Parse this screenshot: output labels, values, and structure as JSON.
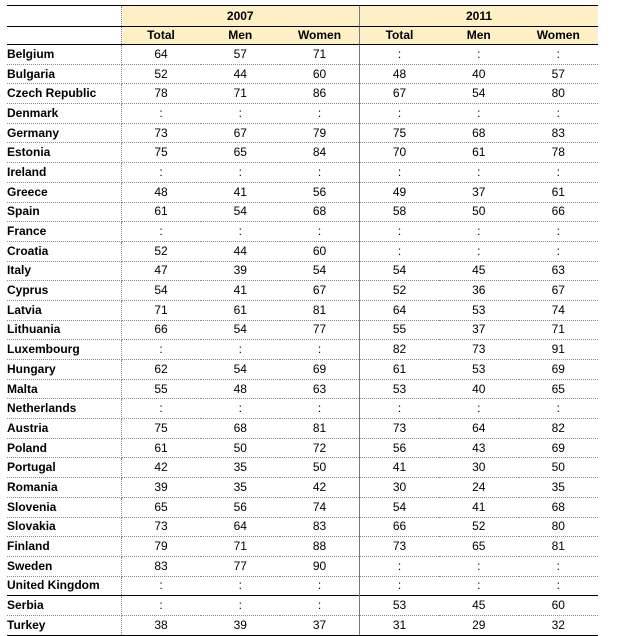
{
  "table": {
    "years": [
      "2007",
      "2011"
    ],
    "columns": [
      "Total",
      "Men",
      "Women",
      "Total",
      "Men",
      "Women"
    ],
    "rows": [
      {
        "country": "Belgium",
        "values": [
          "64",
          "57",
          "71",
          ":",
          ":",
          ":"
        ]
      },
      {
        "country": "Bulgaria",
        "values": [
          "52",
          "44",
          "60",
          "48",
          "40",
          "57"
        ]
      },
      {
        "country": "Czech Republic",
        "values": [
          "78",
          "71",
          "86",
          "67",
          "54",
          "80"
        ]
      },
      {
        "country": "Denmark",
        "values": [
          ":",
          ":",
          ":",
          ":",
          ":",
          ":"
        ]
      },
      {
        "country": "Germany",
        "values": [
          "73",
          "67",
          "79",
          "75",
          "68",
          "83"
        ]
      },
      {
        "country": "Estonia",
        "values": [
          "75",
          "65",
          "84",
          "70",
          "61",
          "78"
        ]
      },
      {
        "country": "Ireland",
        "values": [
          ":",
          ":",
          ":",
          ":",
          ":",
          ":"
        ]
      },
      {
        "country": "Greece",
        "values": [
          "48",
          "41",
          "56",
          "49",
          "37",
          "61"
        ]
      },
      {
        "country": "Spain",
        "values": [
          "61",
          "54",
          "68",
          "58",
          "50",
          "66"
        ]
      },
      {
        "country": "France",
        "values": [
          ":",
          ":",
          ":",
          ":",
          ":",
          ":"
        ]
      },
      {
        "country": "Croatia",
        "values": [
          "52",
          "44",
          "60",
          ":",
          ":",
          ":"
        ]
      },
      {
        "country": "Italy",
        "values": [
          "47",
          "39",
          "54",
          "54",
          "45",
          "63"
        ]
      },
      {
        "country": "Cyprus",
        "values": [
          "54",
          "41",
          "67",
          "52",
          "36",
          "67"
        ]
      },
      {
        "country": "Latvia",
        "values": [
          "71",
          "61",
          "81",
          "64",
          "53",
          "74"
        ]
      },
      {
        "country": "Lithuania",
        "values": [
          "66",
          "54",
          "77",
          "55",
          "37",
          "71"
        ]
      },
      {
        "country": "Luxembourg",
        "values": [
          ":",
          ":",
          ":",
          "82",
          "73",
          "91"
        ]
      },
      {
        "country": "Hungary",
        "values": [
          "62",
          "54",
          "69",
          "61",
          "53",
          "69"
        ]
      },
      {
        "country": "Malta",
        "values": [
          "55",
          "48",
          "63",
          "53",
          "40",
          "65"
        ]
      },
      {
        "country": "Netherlands",
        "values": [
          ":",
          ":",
          ":",
          ":",
          ":",
          ":"
        ]
      },
      {
        "country": "Austria",
        "values": [
          "75",
          "68",
          "81",
          "73",
          "64",
          "82"
        ]
      },
      {
        "country": "Poland",
        "values": [
          "61",
          "50",
          "72",
          "56",
          "43",
          "69"
        ]
      },
      {
        "country": "Portugal",
        "values": [
          "42",
          "35",
          "50",
          "41",
          "30",
          "50"
        ]
      },
      {
        "country": "Romania",
        "values": [
          "39",
          "35",
          "42",
          "30",
          "24",
          "35"
        ]
      },
      {
        "country": "Slovenia",
        "values": [
          "65",
          "56",
          "74",
          "54",
          "41",
          "68"
        ]
      },
      {
        "country": "Slovakia",
        "values": [
          "73",
          "64",
          "83",
          "66",
          "52",
          "80"
        ]
      },
      {
        "country": "Finland",
        "values": [
          "79",
          "71",
          "88",
          "73",
          "65",
          "81"
        ]
      },
      {
        "country": "Sweden",
        "values": [
          "83",
          "77",
          "90",
          ":",
          ":",
          ":"
        ]
      },
      {
        "country": "United Kingdom",
        "values": [
          ":",
          ":",
          ":",
          ":",
          ":",
          ":"
        ]
      },
      {
        "country": "Serbia",
        "values": [
          ":",
          ":",
          ":",
          "53",
          "45",
          "60"
        ]
      },
      {
        "country": "Turkey",
        "values": [
          "38",
          "39",
          "37",
          "31",
          "29",
          "32"
        ]
      }
    ]
  },
  "colors": {
    "header_fill": "#fdefc6",
    "rule": "#000000",
    "dotted_rule": "#8a8a8a"
  }
}
